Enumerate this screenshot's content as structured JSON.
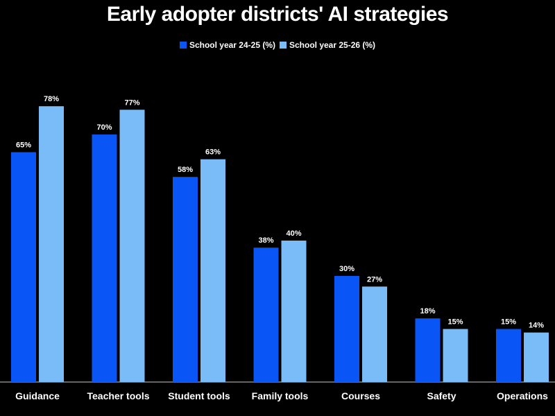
{
  "chart_data": {
    "type": "bar",
    "title": "Early adopter districts' AI strategies",
    "categories": [
      "Guidance",
      "Teacher tools",
      "Student tools",
      "Family tools",
      "Courses",
      "Safety",
      "Operations"
    ],
    "series": [
      {
        "name": "School year 24-25 (%)",
        "color": "#0a55f5",
        "values": [
          65,
          70,
          58,
          38,
          30,
          18,
          15
        ],
        "labels": [
          "65%",
          "70%",
          "58%",
          "38%",
          "30%",
          "18%",
          "15%"
        ]
      },
      {
        "name": "School year 25-26 (%)",
        "color": "#79bcf8",
        "values": [
          78,
          77,
          63,
          40,
          27,
          15,
          14
        ],
        "labels": [
          "78%",
          "77%",
          "63%",
          "40%",
          "27%",
          "15%",
          "14%"
        ]
      }
    ],
    "ylim": [
      0,
      100
    ],
    "grid": false,
    "legend_position": "top-center"
  }
}
